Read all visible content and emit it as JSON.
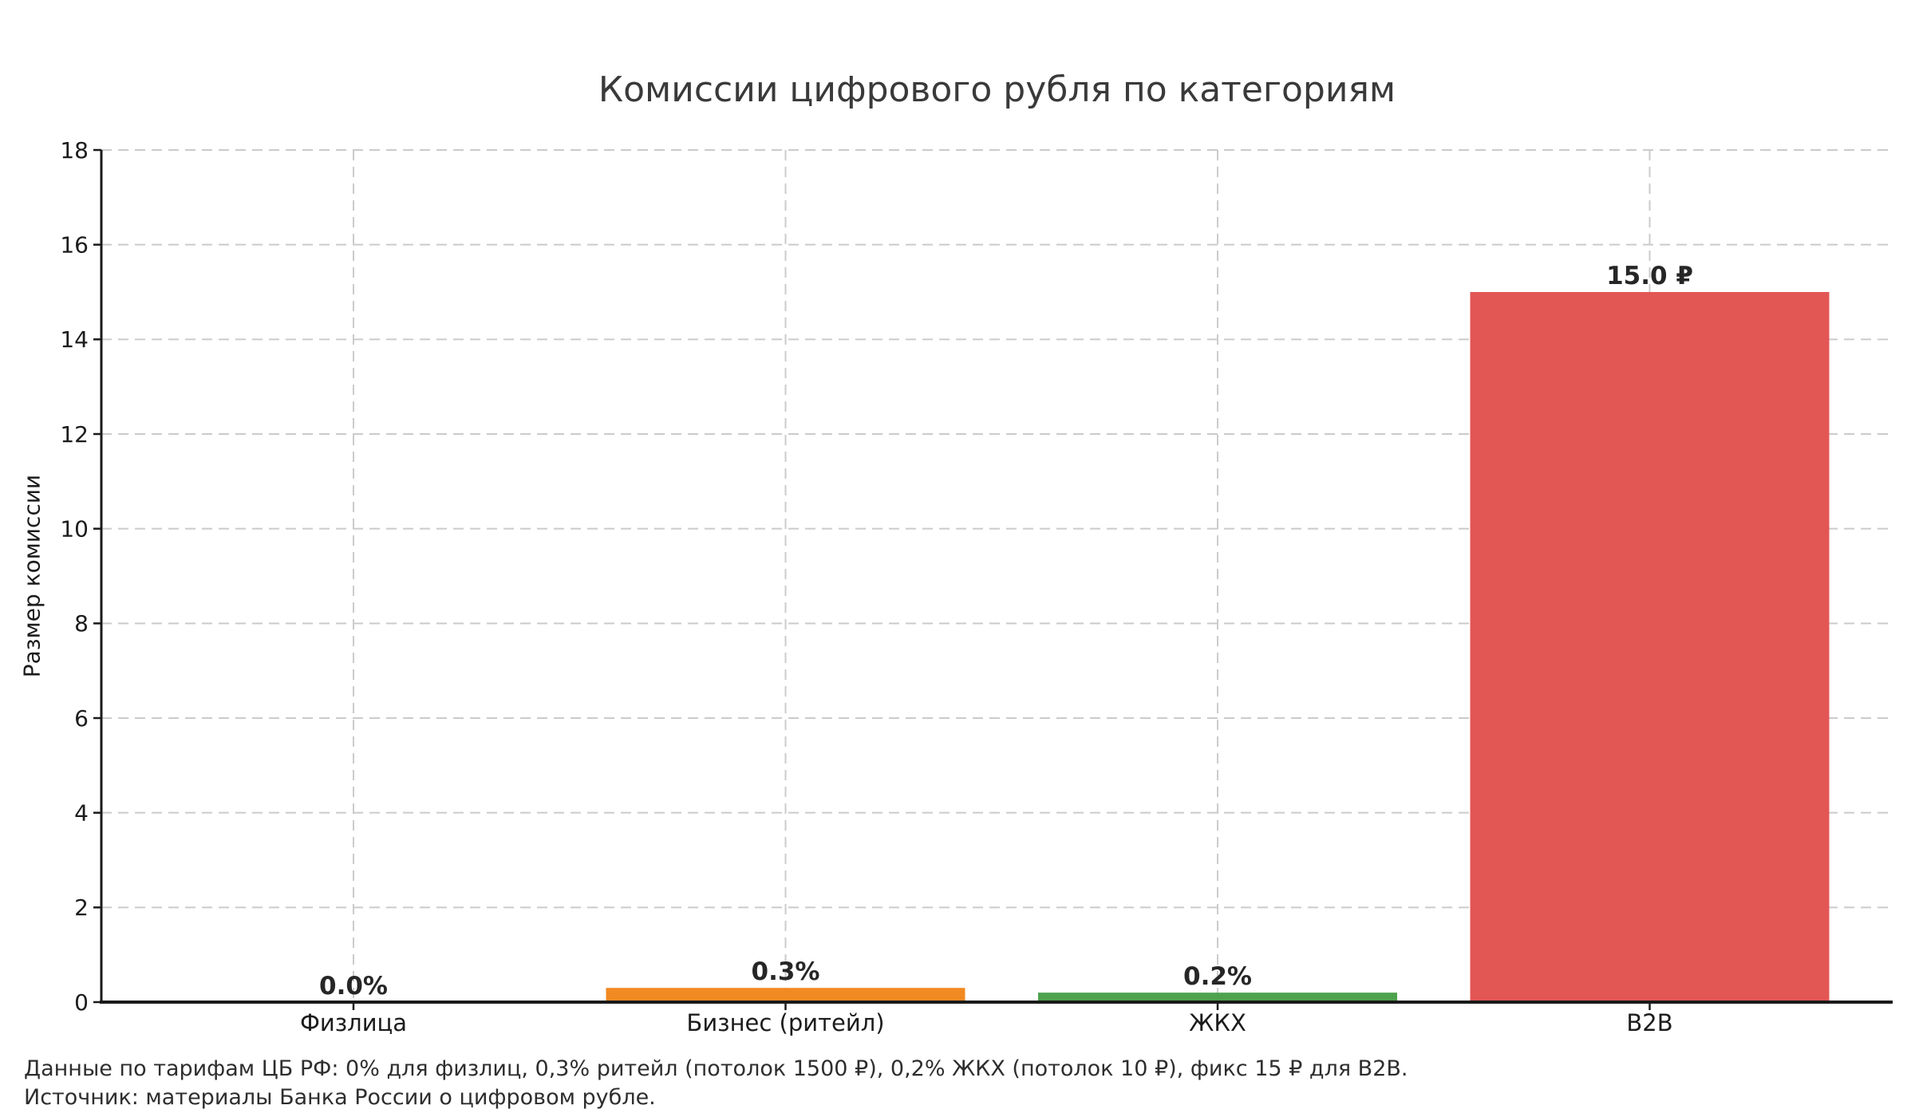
{
  "chart_data": {
    "type": "bar",
    "title": "Комиссии цифрового рубля по категориям",
    "ylabel": "Размер комиссии",
    "xlabel": "",
    "categories": [
      "Физлица",
      "Бизнес (ритейл)",
      "ЖКХ",
      "B2B"
    ],
    "values": [
      0.0,
      0.3,
      0.2,
      15.0
    ],
    "bar_labels": [
      "0.0%",
      "0.3%",
      "0.2%",
      "15.0 ₽"
    ],
    "bar_colors": [
      null,
      "#f18a21",
      "#4ea24d",
      "#e25654"
    ],
    "ylim": [
      0,
      18
    ],
    "yticks": [
      0,
      2,
      4,
      6,
      8,
      10,
      12,
      14,
      16,
      18
    ],
    "ytick_step": 2,
    "grid": true,
    "grid_style": "dashed",
    "legend": "none",
    "annotations": {
      "footnote_line1": "Данные по тарифам ЦБ РФ: 0% для физлиц, 0,3% ритейл (потолок 1500 ₽), 0,2% ЖКХ (потолок 10 ₽), фикс 15 ₽ для B2B.",
      "footnote_line2": "Источник: материалы Банка России о цифровом рубле."
    },
    "styles": {
      "grid_color": "#cbcbcb",
      "axis_color": "#1a1a1a",
      "tick_text_color": "#1c1c1c",
      "title_color": "#3a3a3a",
      "value_label_color": "#262626",
      "footnote_color": "#2e2e2e",
      "background": "#ffffff"
    }
  }
}
